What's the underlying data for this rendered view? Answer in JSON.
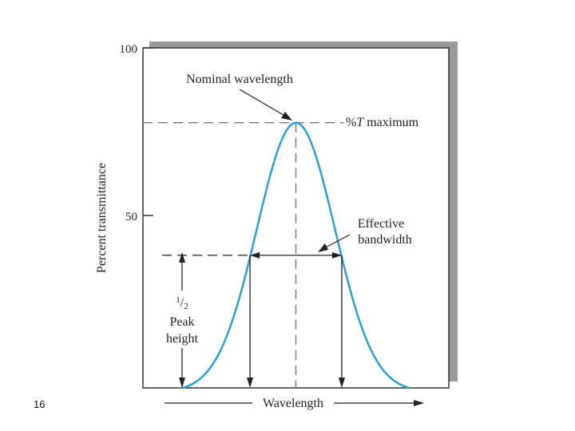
{
  "slide_number": "16",
  "chart_data": {
    "type": "line",
    "xlabel": "Wavelength",
    "ylabel": "Percent transmittance",
    "ylim": [
      0,
      100
    ],
    "yticks": [
      {
        "value": 100,
        "label": "100"
      },
      {
        "value": 50,
        "label": "50"
      }
    ],
    "x_range": [
      0,
      100
    ],
    "curve": {
      "shape": "gaussian",
      "peak_x": 50,
      "peak_y": 78,
      "half_height_y": 39,
      "half_width_left_x": 35,
      "half_width_right_x": 65,
      "start_x": 13,
      "end_x": 87,
      "color": "#2a9fd6"
    },
    "annotations": {
      "nominal": "Nominal wavelength",
      "tmax_prefix": "%",
      "tmax_italic": "T",
      "tmax_suffix": " maximum",
      "bandwidth_line1": "Effective",
      "bandwidth_line2": "bandwidth",
      "half_sup": "1",
      "half_sub": "2",
      "half_line2": "Peak",
      "half_line3": "height"
    },
    "grid": false,
    "legend": "none"
  },
  "colors": {
    "curve": "#2a9fd6",
    "plot_shadow": "#9a9a9a",
    "axis": "#333333",
    "dashed": "#777777"
  }
}
